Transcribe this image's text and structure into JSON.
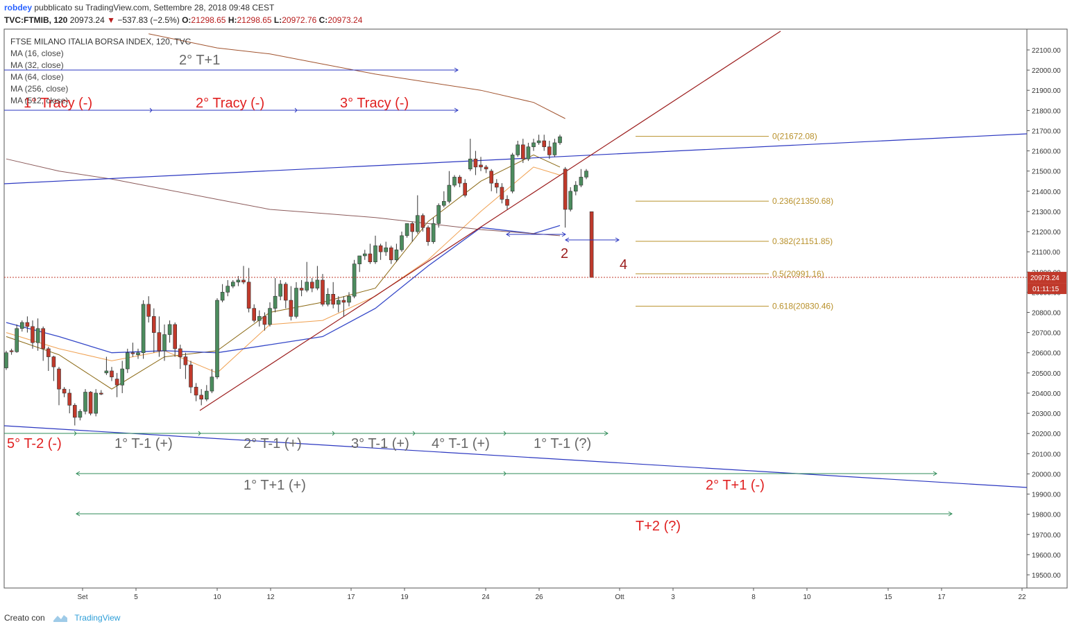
{
  "header": {
    "publisher_user": "robdey",
    "publisher_text": "pubblicato su TradingView.com, Settembre 28, 2018 09:48 CEST",
    "symbol": "TVC:FTMIB, 120",
    "last": "20973.24",
    "change": "−537.83 (−2.5%)",
    "open_label": "O:",
    "open": "21298.65",
    "high_label": "H:",
    "high": "21298.65",
    "low_label": "L:",
    "low": "20972.76",
    "close_label": "C:",
    "close": "20973.24"
  },
  "legend": {
    "title": "FTSE MILANO ITALIA BORSA INDEX, 120, TVC",
    "items": [
      "MA (16, close)",
      "MA (32, close)",
      "MA (64, close)",
      "MA (256, close)",
      "MA (512, close)"
    ]
  },
  "footer": {
    "created_with": "Creato con",
    "brand": "TradingView"
  },
  "colors": {
    "up": "#4c8c5e",
    "down": "#c0392b",
    "ma16": "#8b6914",
    "ma32": "#f0a050",
    "ma64": "#3548c8",
    "ma256": "#8b5a5a",
    "ma512": "#a0522d",
    "trend_blue": "#2a36c0",
    "trend_red": "#9b1c1c",
    "fib": "#b8902a",
    "price_line": "#c0392b",
    "cycle_green": "#2e8b57",
    "label_red": "#e02020",
    "label_gray": "#666666"
  },
  "chart_data": {
    "type": "candlestick",
    "symbol": "FTMIB",
    "interval": "120",
    "y_axis": {
      "side": "right",
      "ylim": [
        19410,
        22210
      ],
      "ticks": [
        "19500.00",
        "19600.00",
        "19700.00",
        "19800.00",
        "19900.00",
        "20000.00",
        "20100.00",
        "20200.00",
        "20300.00",
        "20400.00",
        "20500.00",
        "20600.00",
        "20700.00",
        "20800.00",
        "20900.00",
        "21000.00",
        "21100.00",
        "21200.00",
        "21300.00",
        "21400.00",
        "21500.00",
        "21600.00",
        "21700.00",
        "21800.00",
        "21900.00",
        "22000.00",
        "22100.00"
      ]
    },
    "x_axis": {
      "ticks": [
        "Set",
        "5",
        "10",
        "12",
        "17",
        "19",
        "24",
        "26",
        "Ott",
        "3",
        "8",
        "10",
        "15",
        "17",
        "22"
      ]
    },
    "last_price": {
      "value": "20973.24",
      "countdown": "01:11:15"
    },
    "candles": [
      [
        20525,
        20610,
        20600,
        20515
      ],
      [
        20610,
        20620,
        20605,
        20590
      ],
      [
        20605,
        20740,
        20720,
        20600
      ],
      [
        20720,
        20760,
        20750,
        20705
      ],
      [
        20750,
        20780,
        20730,
        20700
      ],
      [
        20730,
        20760,
        20650,
        20620
      ],
      [
        20650,
        20770,
        20720,
        20610
      ],
      [
        20720,
        20730,
        20620,
        20560
      ],
      [
        20620,
        20630,
        20580,
        20510
      ],
      [
        20580,
        20585,
        20530,
        20460
      ],
      [
        20520,
        20530,
        20420,
        20340
      ],
      [
        20420,
        20430,
        20400,
        20380
      ],
      [
        20400,
        20420,
        20340,
        20300
      ],
      [
        20340,
        20350,
        20280,
        20240
      ],
      [
        20280,
        20320,
        20310,
        20265
      ],
      [
        20310,
        20420,
        20405,
        20295
      ],
      [
        20405,
        20410,
        20300,
        20290
      ],
      [
        20300,
        20420,
        20400,
        20285
      ],
      [
        20400,
        20415,
        20395,
        20390
      ],
      [
        20500,
        20580,
        20510,
        20490
      ],
      [
        20510,
        20530,
        20480,
        20460
      ],
      [
        20470,
        20500,
        20440,
        20380
      ],
      [
        20440,
        20560,
        20520,
        20400
      ],
      [
        20520,
        20620,
        20600,
        20500
      ],
      [
        20600,
        20650,
        20595,
        20580
      ],
      [
        20590,
        20620,
        20600,
        20570
      ],
      [
        20600,
        20860,
        20840,
        20570
      ],
      [
        20840,
        20880,
        20780,
        20750
      ],
      [
        20780,
        20820,
        20700,
        20600
      ],
      [
        20700,
        20780,
        20610,
        20580
      ],
      [
        20610,
        20740,
        20690,
        20560
      ],
      [
        20690,
        20760,
        20740,
        20650
      ],
      [
        20740,
        20750,
        20620,
        20580
      ],
      [
        20620,
        20640,
        20580,
        20520
      ],
      [
        20580,
        20600,
        20540,
        20470
      ],
      [
        20540,
        20560,
        20430,
        20400
      ],
      [
        20430,
        20450,
        20390,
        20360
      ],
      [
        20390,
        20420,
        20370,
        20340
      ],
      [
        20370,
        20440,
        20410,
        20360
      ],
      [
        20410,
        20520,
        20480,
        20400
      ],
      [
        20480,
        20870,
        20860,
        20470
      ],
      [
        20860,
        20940,
        20900,
        20850
      ],
      [
        20900,
        20960,
        20930,
        20880
      ],
      [
        20930,
        20960,
        20950,
        20920
      ],
      [
        20950,
        20980,
        20960,
        20930
      ],
      [
        20960,
        21030,
        20950,
        20940
      ],
      [
        20950,
        21020,
        20820,
        20800
      ],
      [
        20820,
        20840,
        20760,
        20750
      ],
      [
        20760,
        20810,
        20780,
        20730
      ],
      [
        20780,
        20800,
        20740,
        20710
      ],
      [
        20740,
        20850,
        20820,
        20730
      ],
      [
        20820,
        20970,
        20880,
        20800
      ],
      [
        20880,
        20960,
        20940,
        20860
      ],
      [
        20940,
        20950,
        20860,
        20820
      ],
      [
        20860,
        20930,
        20780,
        20760
      ],
      [
        20780,
        20950,
        20920,
        20770
      ],
      [
        20920,
        20960,
        20910,
        20880
      ],
      [
        20910,
        21050,
        20950,
        20900
      ],
      [
        20950,
        20970,
        20920,
        20900
      ],
      [
        20920,
        21030,
        20960,
        20910
      ],
      [
        20960,
        20990,
        20840,
        20830
      ],
      [
        20840,
        20920,
        20890,
        20830
      ],
      [
        20890,
        20950,
        20840,
        20820
      ],
      [
        20840,
        20880,
        20860,
        20800
      ],
      [
        20860,
        20880,
        20850,
        20780
      ],
      [
        20850,
        20900,
        20880,
        20830
      ],
      [
        20880,
        21060,
        21040,
        20870
      ],
      [
        21040,
        21060,
        21080,
        21000
      ],
      [
        21080,
        21110,
        21090,
        21060
      ],
      [
        21090,
        21140,
        21050,
        21040
      ],
      [
        21050,
        21180,
        21130,
        21040
      ],
      [
        21130,
        21140,
        21100,
        21060
      ],
      [
        21100,
        21150,
        21120,
        21080
      ],
      [
        21120,
        21130,
        21060,
        21040
      ],
      [
        21060,
        21140,
        21110,
        21050
      ],
      [
        21110,
        21200,
        21180,
        21100
      ],
      [
        21180,
        21210,
        21240,
        21170
      ],
      [
        21240,
        21250,
        21200,
        21150
      ],
      [
        21200,
        21380,
        21280,
        21190
      ],
      [
        21280,
        21290,
        21220,
        21200
      ],
      [
        21220,
        21230,
        21150,
        21130
      ],
      [
        21150,
        21270,
        21240,
        21140
      ],
      [
        21240,
        21340,
        21330,
        21220
      ],
      [
        21330,
        21400,
        21350,
        21320
      ],
      [
        21350,
        21500,
        21430,
        21340
      ],
      [
        21430,
        21480,
        21470,
        21420
      ],
      [
        21470,
        21480,
        21440,
        21420
      ],
      [
        21440,
        21460,
        21380,
        21370
      ],
      [
        21510,
        21660,
        21560,
        21500
      ],
      [
        21560,
        21600,
        21520,
        21480
      ],
      [
        21530,
        21570,
        21520,
        21500
      ],
      [
        21520,
        21530,
        21510,
        21490
      ],
      [
        21500,
        21510,
        21440,
        21400
      ],
      [
        21440,
        21460,
        21420,
        21390
      ],
      [
        21420,
        21440,
        21360,
        21340
      ],
      [
        21360,
        21380,
        21330,
        21310
      ],
      [
        21400,
        21590,
        21580,
        21390
      ],
      [
        21580,
        21650,
        21630,
        21570
      ],
      [
        21630,
        21660,
        21560,
        21540
      ],
      [
        21560,
        21640,
        21620,
        21550
      ],
      [
        21620,
        21660,
        21640,
        21600
      ],
      [
        21640,
        21680,
        21650,
        21630
      ],
      [
        21650,
        21680,
        21620,
        21600
      ],
      [
        21620,
        21650,
        21580,
        21560
      ],
      [
        21580,
        21660,
        21640,
        21570
      ],
      [
        21640,
        21680,
        21670,
        21630
      ],
      [
        21510,
        21520,
        21310,
        21220
      ],
      [
        21310,
        21420,
        21400,
        21300
      ],
      [
        21400,
        21450,
        21430,
        21380
      ],
      [
        21430,
        21510,
        21470,
        21420
      ],
      [
        21470,
        21510,
        21500,
        21460
      ],
      [
        21298.65,
        21298.65,
        20973.24,
        20972.76
      ]
    ],
    "moving_averages": [
      {
        "name": "MA (16, close)",
        "x": [
          0,
          10,
          20,
          30,
          40,
          50,
          60,
          70,
          80,
          90,
          100,
          105
        ],
        "y": [
          20680,
          20590,
          20420,
          20580,
          20610,
          20800,
          20850,
          20920,
          21250,
          21450,
          21580,
          21520
        ]
      },
      {
        "name": "MA (32, close)",
        "x": [
          0,
          10,
          20,
          30,
          40,
          50,
          60,
          70,
          80,
          90,
          100,
          105
        ],
        "y": [
          20700,
          20620,
          20560,
          20610,
          20500,
          20740,
          20760,
          20880,
          21060,
          21300,
          21520,
          21480
        ]
      },
      {
        "name": "MA (64, close)",
        "x": [
          0,
          10,
          20,
          30,
          40,
          50,
          60,
          70,
          80,
          90,
          100,
          105
        ],
        "y": [
          20750,
          20680,
          20600,
          20610,
          20600,
          20640,
          20680,
          20820,
          21030,
          21220,
          21190,
          21230
        ]
      },
      {
        "name": "MA (256, close)",
        "x": [
          0,
          10,
          20,
          30,
          40,
          50,
          60,
          70,
          80,
          90,
          100,
          105
        ],
        "y": [
          21560,
          21500,
          21460,
          21410,
          21360,
          21310,
          21290,
          21270,
          21240,
          21210,
          21190,
          21180
        ]
      },
      {
        "name": "MA (512, close)",
        "x": [
          27,
          40,
          50,
          60,
          70,
          80,
          90,
          100,
          106
        ],
        "y": [
          22180,
          22110,
          22080,
          22030,
          21980,
          21940,
          21900,
          21840,
          21760
        ]
      }
    ],
    "fibonacci": [
      {
        "label": "0(21672.08)",
        "value": 21672.08
      },
      {
        "label": "0.236(21350.68)",
        "value": 21350.68
      },
      {
        "label": "0.382(21151.85)",
        "value": 21151.85
      },
      {
        "label": "0.5(20991.16)",
        "value": 20991.16
      },
      {
        "label": "0.618(20830.46)",
        "value": 20830.46
      }
    ],
    "annotations": [
      {
        "text": "2° T+1",
        "color": "gray"
      },
      {
        "text": "1° Tracy (-)",
        "color": "red"
      },
      {
        "text": "2° Tracy (-)",
        "color": "red"
      },
      {
        "text": "3° Tracy (-)",
        "color": "red"
      },
      {
        "text": "2",
        "color": "darkred"
      },
      {
        "text": "4",
        "color": "darkred"
      },
      {
        "text": "5° T-2 (-)",
        "color": "red"
      },
      {
        "text": "1° T-1 (+)",
        "color": "gray"
      },
      {
        "text": "2° T-1 (+)",
        "color": "gray"
      },
      {
        "text": "3° T-1 (+)",
        "color": "gray"
      },
      {
        "text": "4° T-1 (+)",
        "color": "gray"
      },
      {
        "text": "1° T-1 (?)",
        "color": "gray"
      },
      {
        "text": "1° T+1 (+)",
        "color": "gray"
      },
      {
        "text": "2° T+1 (-)",
        "color": "red"
      },
      {
        "text": "T+2 (?)",
        "color": "red"
      }
    ]
  }
}
